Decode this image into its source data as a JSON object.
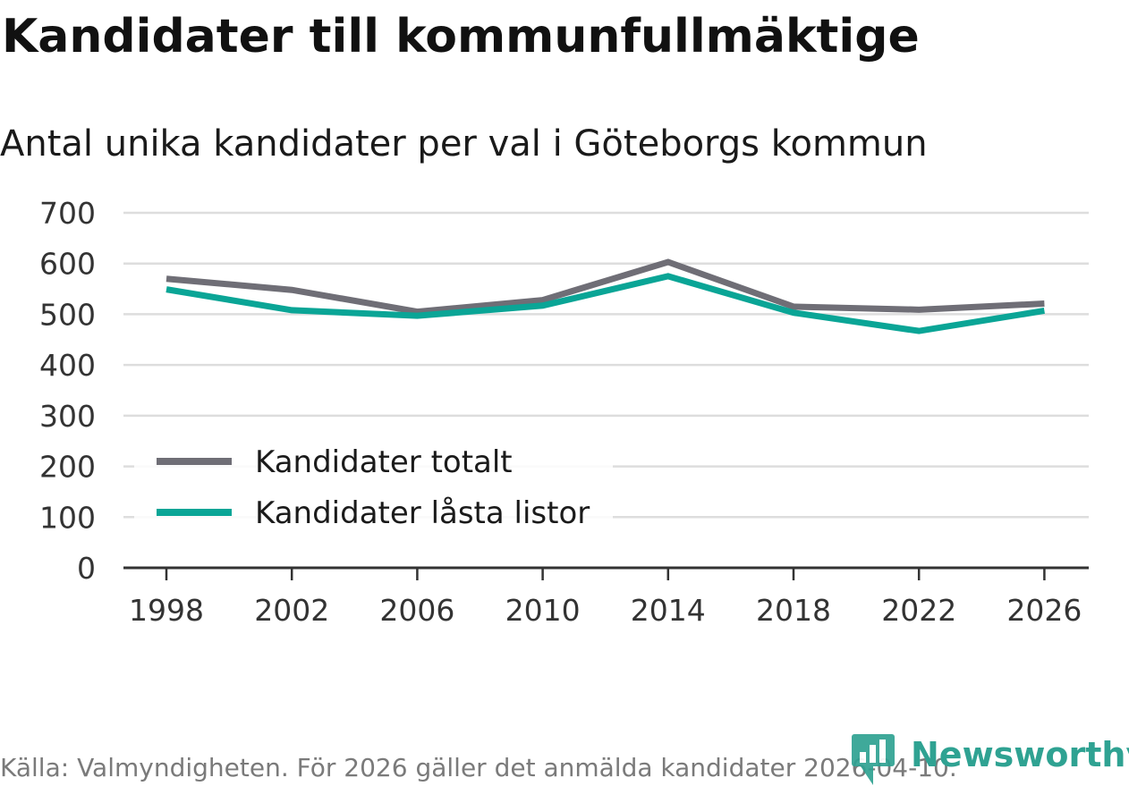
{
  "colors": {
    "total": "#6f6e76",
    "locked": "#0aa596",
    "grid": "#dddddd",
    "axis": "#333333",
    "logo": "#2fa292"
  },
  "chart_data": {
    "type": "line",
    "title": "Kandidater till kommunfullmäktige",
    "subtitle": "Antal unika kandidater per val i Göteborgs kommun",
    "categories": [
      "1998",
      "2002",
      "2006",
      "2010",
      "2014",
      "2018",
      "2022",
      "2026"
    ],
    "series": [
      {
        "name": "Kandidater totalt",
        "color_key": "total",
        "values": [
          570,
          548,
          505,
          528,
          603,
          515,
          509,
          521
        ]
      },
      {
        "name": "Kandidater låsta listor",
        "color_key": "locked",
        "values": [
          549,
          508,
          497,
          517,
          575,
          503,
          467,
          507
        ]
      }
    ],
    "yticks": [
      "0",
      "100",
      "200",
      "300",
      "400",
      "500",
      "600",
      "700"
    ],
    "ylim": [
      0,
      700
    ],
    "grid": true,
    "legend_position": "bottom-left"
  },
  "footer": {
    "source": "Källa: Valmyndigheten. För 2026 gäller det anmälda kandidater 2026-04-10.",
    "logo_text": "Newsworthy",
    "logo_icon": "newsworthy-chart-icon"
  }
}
